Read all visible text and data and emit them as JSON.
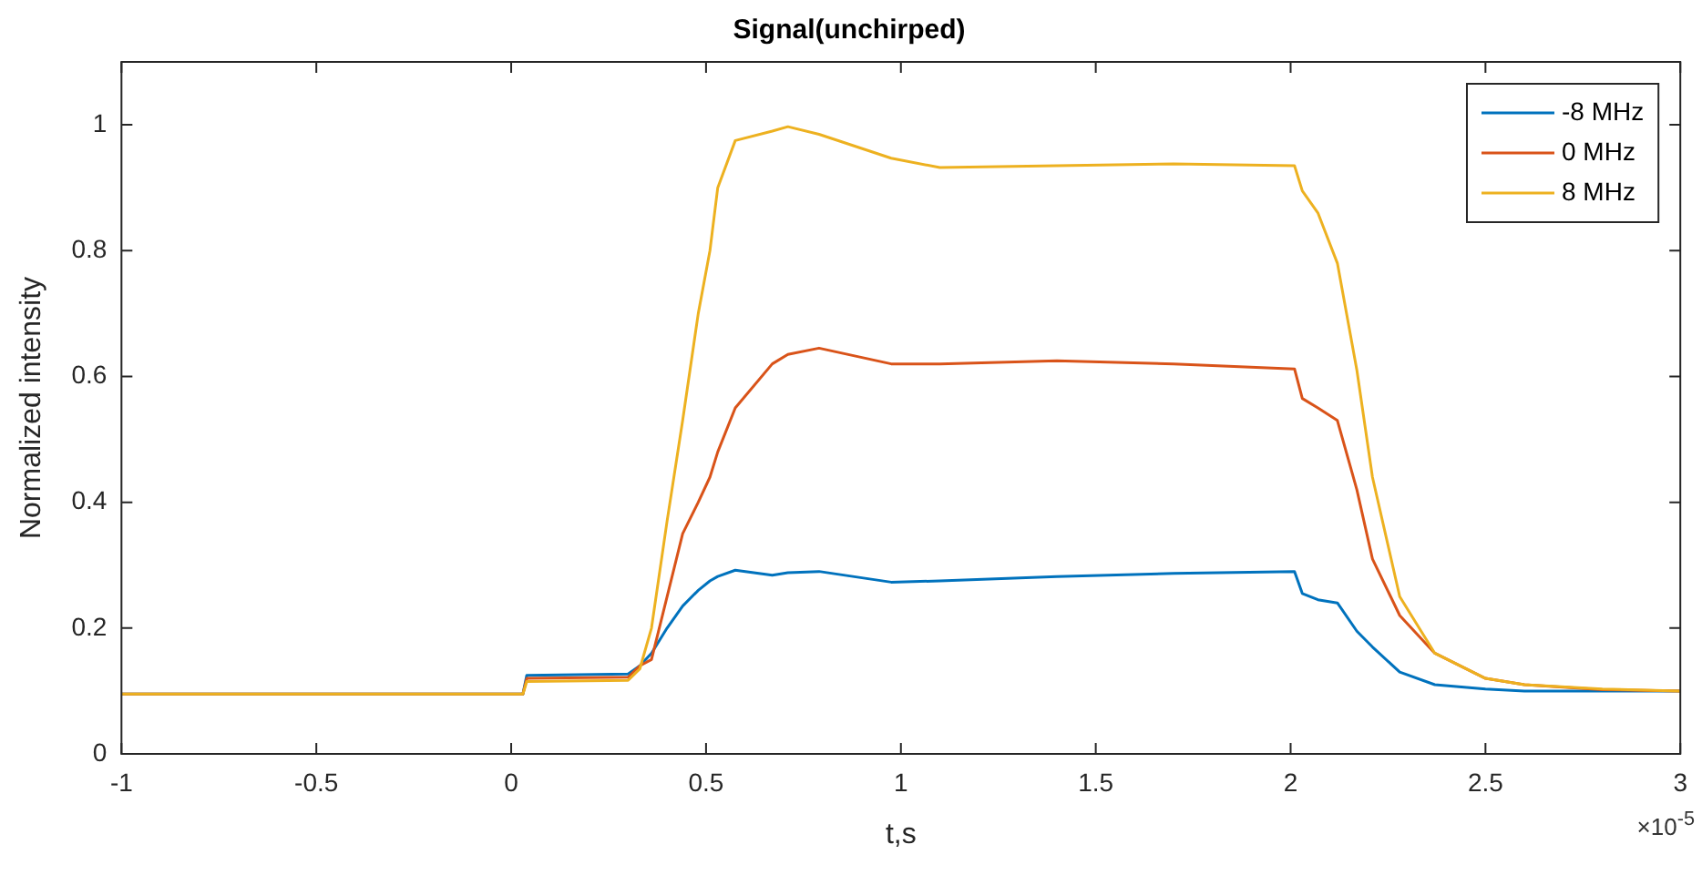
{
  "chart_data": {
    "type": "line",
    "title": "Signal(unchirped)",
    "xlabel": "t,s",
    "ylabel": "Normalized intensity",
    "annotations": [
      "×10$^{-5}$"
    ],
    "x": [
      -1,
      0.03,
      0.04,
      0.3,
      0.33,
      0.36,
      0.4,
      0.44,
      0.48,
      0.51,
      0.53,
      0.575,
      0.67,
      0.71,
      0.79,
      0.975,
      1.1,
      1.4,
      1.7,
      2.01,
      2.03,
      2.07,
      2.12,
      2.17,
      2.21,
      2.28,
      2.37,
      2.5,
      2.6,
      2.8,
      3
    ],
    "series": [
      {
        "name": "-8 MHz",
        "color": "#0072bd",
        "values": [
          0.095,
          0.095,
          0.125,
          0.127,
          0.14,
          0.16,
          0.2,
          0.235,
          0.26,
          0.275,
          0.282,
          0.292,
          0.284,
          0.288,
          0.29,
          0.273,
          0.275,
          0.282,
          0.287,
          0.29,
          0.255,
          0.245,
          0.24,
          0.195,
          0.17,
          0.13,
          0.11,
          0.103,
          0.1,
          0.1,
          0.1
        ]
      },
      {
        "name": "0 MHz",
        "color": "#d95319",
        "values": [
          0.095,
          0.095,
          0.12,
          0.122,
          0.14,
          0.15,
          0.25,
          0.35,
          0.4,
          0.44,
          0.48,
          0.55,
          0.62,
          0.635,
          0.645,
          0.62,
          0.62,
          0.625,
          0.62,
          0.612,
          0.565,
          0.55,
          0.53,
          0.42,
          0.31,
          0.22,
          0.16,
          0.12,
          0.11,
          0.102,
          0.1
        ]
      },
      {
        "name": "8 MHz",
        "color": "#edb120",
        "values": [
          0.095,
          0.095,
          0.115,
          0.117,
          0.135,
          0.2,
          0.37,
          0.53,
          0.7,
          0.8,
          0.9,
          0.975,
          0.99,
          0.997,
          0.985,
          0.947,
          0.932,
          0.935,
          0.938,
          0.935,
          0.895,
          0.86,
          0.78,
          0.61,
          0.44,
          0.25,
          0.16,
          0.12,
          0.11,
          0.103,
          0.1
        ]
      }
    ],
    "xlim": [
      -1,
      3
    ],
    "xticks": [
      -1,
      -0.5,
      0,
      0.5,
      1,
      1.5,
      2,
      2.5,
      3
    ],
    "ylim": [
      0,
      1.1
    ],
    "yticks": [
      0,
      0.2,
      0.4,
      0.6,
      0.8,
      1
    ],
    "legend": "top right",
    "marker": "none",
    "line_style": "solid"
  }
}
